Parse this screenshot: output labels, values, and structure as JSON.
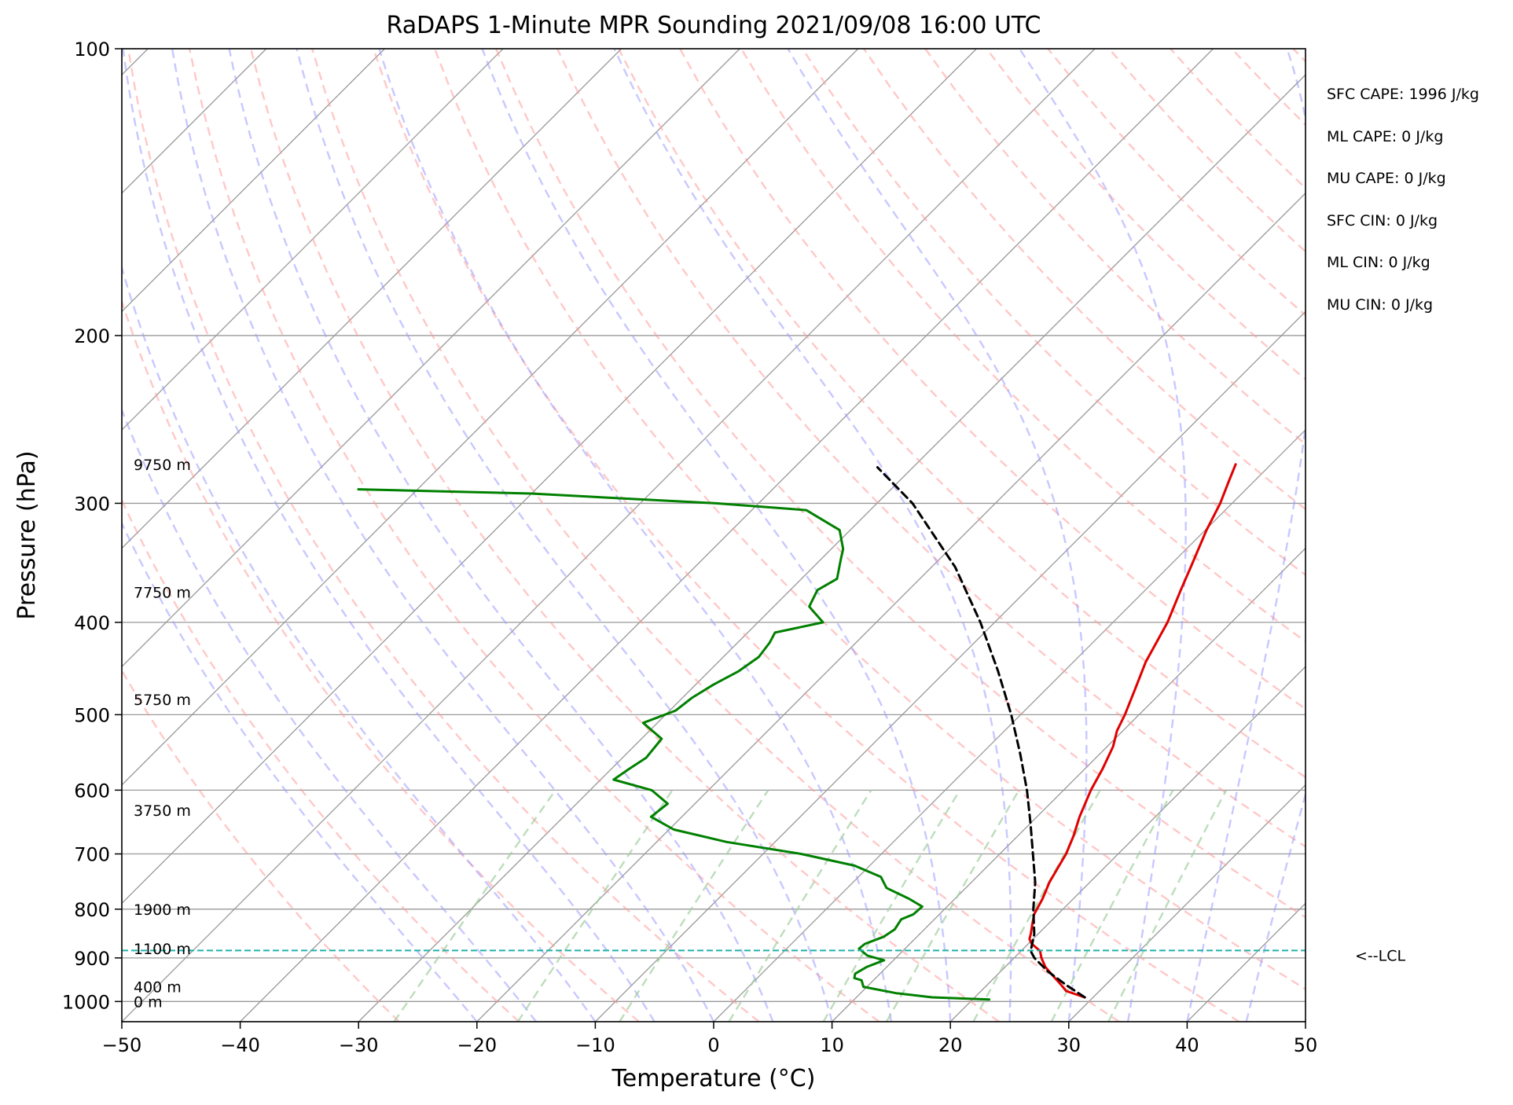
{
  "chart_data": {
    "type": "line",
    "title": "RaDAPS 1-Minute MPR Sounding 2021/09/08 16:00 UTC",
    "xlabel": "Temperature (°C)",
    "ylabel": "Pressure (hPa)",
    "xlim": [
      -50,
      50
    ],
    "ylim": [
      1050,
      100
    ],
    "y_scale": "log",
    "skew": "skew-T",
    "grid": true,
    "x_ticks": [
      -50,
      -40,
      -30,
      -20,
      -10,
      0,
      10,
      20,
      30,
      40,
      50
    ],
    "x_tick_labels": [
      "−50",
      "−40",
      "−30",
      "−20",
      "−10",
      "0",
      "10",
      "20",
      "30",
      "40",
      "50"
    ],
    "y_ticks": [
      100,
      200,
      300,
      400,
      500,
      600,
      700,
      800,
      900,
      1000
    ],
    "y_tick_labels": [
      "100",
      "200",
      "300",
      "400",
      "500",
      "600",
      "700",
      "800",
      "900",
      "1000"
    ],
    "series": [
      {
        "role": "temperature",
        "color": "#e00000",
        "points": [
          [
            990,
            29.3
          ],
          [
            975,
            27.2
          ],
          [
            960,
            26.2
          ],
          [
            940,
            24.8
          ],
          [
            920,
            23.4
          ],
          [
            900,
            22.3
          ],
          [
            885,
            21.6
          ],
          [
            870,
            20.3
          ],
          [
            860,
            19.7
          ],
          [
            850,
            19.4
          ],
          [
            830,
            18.7
          ],
          [
            810,
            18.0
          ],
          [
            780,
            17.4
          ],
          [
            750,
            16.6
          ],
          [
            720,
            16.0
          ],
          [
            700,
            15.6
          ],
          [
            670,
            14.7
          ],
          [
            640,
            13.6
          ],
          [
            600,
            12.3
          ],
          [
            570,
            11.5
          ],
          [
            540,
            10.5
          ],
          [
            520,
            9.5
          ],
          [
            500,
            8.8
          ],
          [
            470,
            7.5
          ],
          [
            440,
            6.1
          ],
          [
            400,
            4.6
          ],
          [
            370,
            3.0
          ],
          [
            350,
            1.9
          ],
          [
            320,
            0.1
          ],
          [
            300,
            -1.0
          ],
          [
            285,
            -2.1
          ],
          [
            273,
            -3.0
          ]
        ]
      },
      {
        "role": "dewpoint",
        "color": "#008000",
        "points": [
          [
            995,
            21.4
          ],
          [
            990,
            16.4
          ],
          [
            980,
            13.0
          ],
          [
            965,
            9.7
          ],
          [
            950,
            9.0
          ],
          [
            945,
            8.2
          ],
          [
            935,
            7.9
          ],
          [
            920,
            8.3
          ],
          [
            905,
            9.2
          ],
          [
            895,
            7.4
          ],
          [
            880,
            6.1
          ],
          [
            870,
            6.2
          ],
          [
            855,
            7.2
          ],
          [
            840,
            7.5
          ],
          [
            820,
            7.2
          ],
          [
            810,
            7.8
          ],
          [
            795,
            7.9
          ],
          [
            780,
            6.1
          ],
          [
            760,
            3.3
          ],
          [
            740,
            1.9
          ],
          [
            720,
            -1.3
          ],
          [
            700,
            -6.8
          ],
          [
            680,
            -14.1
          ],
          [
            660,
            -19.6
          ],
          [
            640,
            -22.6
          ],
          [
            620,
            -22.3
          ],
          [
            600,
            -24.8
          ],
          [
            585,
            -28.9
          ],
          [
            570,
            -28.5
          ],
          [
            555,
            -28.0
          ],
          [
            530,
            -28.3
          ],
          [
            510,
            -31.2
          ],
          [
            495,
            -29.5
          ],
          [
            480,
            -29.2
          ],
          [
            465,
            -28.5
          ],
          [
            450,
            -27.5
          ],
          [
            435,
            -27.0
          ],
          [
            420,
            -27.3
          ],
          [
            410,
            -27.7
          ],
          [
            400,
            -24.5
          ],
          [
            385,
            -27.0
          ],
          [
            370,
            -27.7
          ],
          [
            360,
            -27.0
          ],
          [
            345,
            -28.2
          ],
          [
            335,
            -29.0
          ],
          [
            320,
            -30.9
          ],
          [
            305,
            -35.4
          ],
          [
            300,
            -43.6
          ],
          [
            296,
            -53.0
          ],
          [
            293,
            -60.0
          ],
          [
            290,
            -75.0
          ]
        ]
      },
      {
        "role": "parcel",
        "color": "#000000",
        "style": "dashed",
        "points": [
          [
            990,
            29.3
          ],
          [
            960,
            26.6
          ],
          [
            930,
            24.0
          ],
          [
            900,
            21.7
          ],
          [
            885,
            20.8
          ],
          [
            850,
            19.7
          ],
          [
            800,
            17.5
          ],
          [
            750,
            15.4
          ],
          [
            700,
            12.8
          ],
          [
            650,
            10.0
          ],
          [
            600,
            6.9
          ],
          [
            550,
            3.3
          ],
          [
            500,
            -0.8
          ],
          [
            450,
            -5.6
          ],
          [
            400,
            -11.2
          ],
          [
            350,
            -18.0
          ],
          [
            300,
            -27.0
          ],
          [
            275,
            -33.0
          ]
        ]
      }
    ],
    "lcl_pressure": 884,
    "lcl_label": "<--LCL",
    "height_labels": [
      {
        "p": 1000,
        "text": "0 m"
      },
      {
        "p": 965,
        "text": "400 m"
      },
      {
        "p": 880,
        "text": "1100 m"
      },
      {
        "p": 800,
        "text": "1900 m"
      },
      {
        "p": 630,
        "text": "3750 m"
      },
      {
        "p": 482,
        "text": "5750 m"
      },
      {
        "p": 372,
        "text": "7750 m"
      },
      {
        "p": 273,
        "text": "9750 m"
      }
    ],
    "stats": [
      "SFC CAPE: 1996 J/kg",
      "ML CAPE: 0 J/kg",
      "MU CAPE: 0 J/kg",
      "SFC CIN: 0 J/kg",
      "ML CIN: 0 J/kg",
      "MU CIN: 0 J/kg"
    ],
    "colors": {
      "isotherm": "#999999",
      "dry_adiabat": "#ff9a9a",
      "moist_adiabat": "#9a9aff",
      "mixing_ratio": "#9fcf9f",
      "lcl_line": "#20b2aa"
    }
  }
}
